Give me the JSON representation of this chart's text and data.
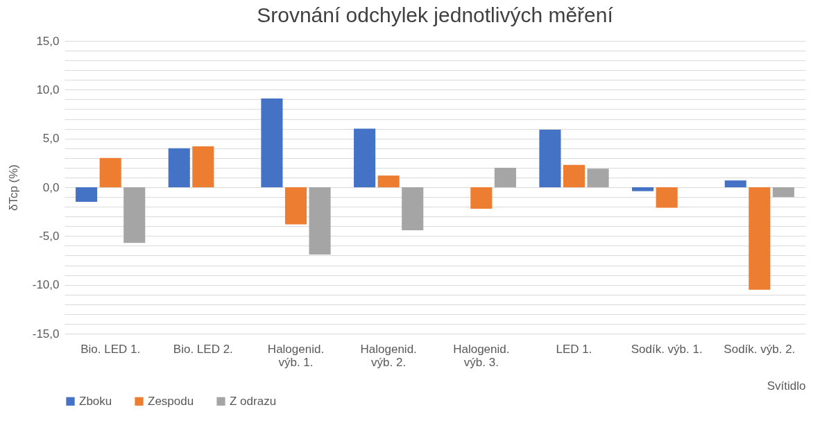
{
  "chart_data": {
    "type": "bar",
    "title": "Srovnání odchylek jednotlivých měření",
    "xlabel": "Svítidlo",
    "ylabel": "δTcp (%)",
    "categories": [
      "Bio. LED 1.",
      "Bio. LED 2.",
      "Halogenid. výb. 1.",
      "Halogenid. výb. 2.",
      "Halogenid. výb. 3.",
      "LED 1.",
      "Sodík. výb. 1.",
      "Sodík. výb. 2."
    ],
    "series": [
      {
        "name": "Zboku",
        "color": "#4472c4",
        "values": [
          -1.5,
          4.0,
          9.1,
          6.0,
          null,
          5.9,
          -0.4,
          0.7
        ]
      },
      {
        "name": "Zespodu",
        "color": "#ed7d31",
        "values": [
          3.0,
          4.2,
          -3.8,
          1.2,
          -2.2,
          2.3,
          -2.1,
          -10.5
        ]
      },
      {
        "name": "Z odrazu",
        "color": "#a5a5a5",
        "values": [
          -5.7,
          null,
          -6.9,
          -4.4,
          2.0,
          1.9,
          null,
          -1.0
        ]
      }
    ],
    "ylim": [
      -15,
      15
    ],
    "yticks": [
      {
        "value": -15,
        "label": "-15,0"
      },
      {
        "value": -14,
        "label": null
      },
      {
        "value": -13,
        "label": null
      },
      {
        "value": -12,
        "label": null
      },
      {
        "value": -11,
        "label": null
      },
      {
        "value": -10,
        "label": "-10,0"
      },
      {
        "value": -9,
        "label": null
      },
      {
        "value": -8,
        "label": null
      },
      {
        "value": -7,
        "label": null
      },
      {
        "value": -6,
        "label": null
      },
      {
        "value": -5,
        "label": "-5,0"
      },
      {
        "value": -4,
        "label": null
      },
      {
        "value": -3,
        "label": null
      },
      {
        "value": -2,
        "label": null
      },
      {
        "value": -1,
        "label": null
      },
      {
        "value": 0,
        "label": "0,0"
      },
      {
        "value": 1,
        "label": null
      },
      {
        "value": 2,
        "label": null
      },
      {
        "value": 3,
        "label": null
      },
      {
        "value": 4,
        "label": null
      },
      {
        "value": 5,
        "label": "5,0"
      },
      {
        "value": 6,
        "label": null
      },
      {
        "value": 7,
        "label": null
      },
      {
        "value": 8,
        "label": null
      },
      {
        "value": 9,
        "label": null
      },
      {
        "value": 10,
        "label": "10,0"
      },
      {
        "value": 11,
        "label": null
      },
      {
        "value": 12,
        "label": null
      },
      {
        "value": 13,
        "label": null
      },
      {
        "value": 14,
        "label": null
      },
      {
        "value": 15,
        "label": "15,0"
      }
    ],
    "grid": "y",
    "legend": "bottom"
  }
}
